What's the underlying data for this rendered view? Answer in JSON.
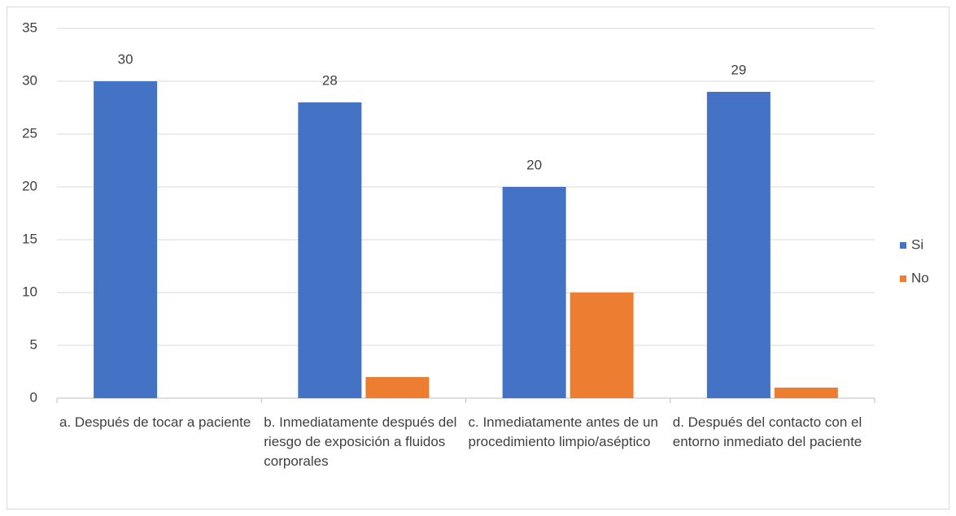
{
  "chart_data": {
    "type": "bar",
    "categories": [
      "a. Después de tocar a paciente",
      "b. Inmediatamente después del riesgo de exposición a fluidos corporales",
      "c. Inmediatamente antes de un procedimiento limpio/aséptico",
      "d. Después del contacto con el entorno inmediato del paciente"
    ],
    "series": [
      {
        "name": "Si",
        "color": "#4472c4",
        "values": [
          30,
          28,
          20,
          29
        ],
        "data_labels": true
      },
      {
        "name": "No",
        "color": "#ed7d31",
        "values": [
          0,
          2,
          10,
          1
        ],
        "data_labels": false
      }
    ],
    "ylim": [
      0,
      35
    ],
    "yticks": [
      0,
      5,
      10,
      15,
      20,
      25,
      30,
      35
    ],
    "grid": true,
    "legend": "right"
  }
}
